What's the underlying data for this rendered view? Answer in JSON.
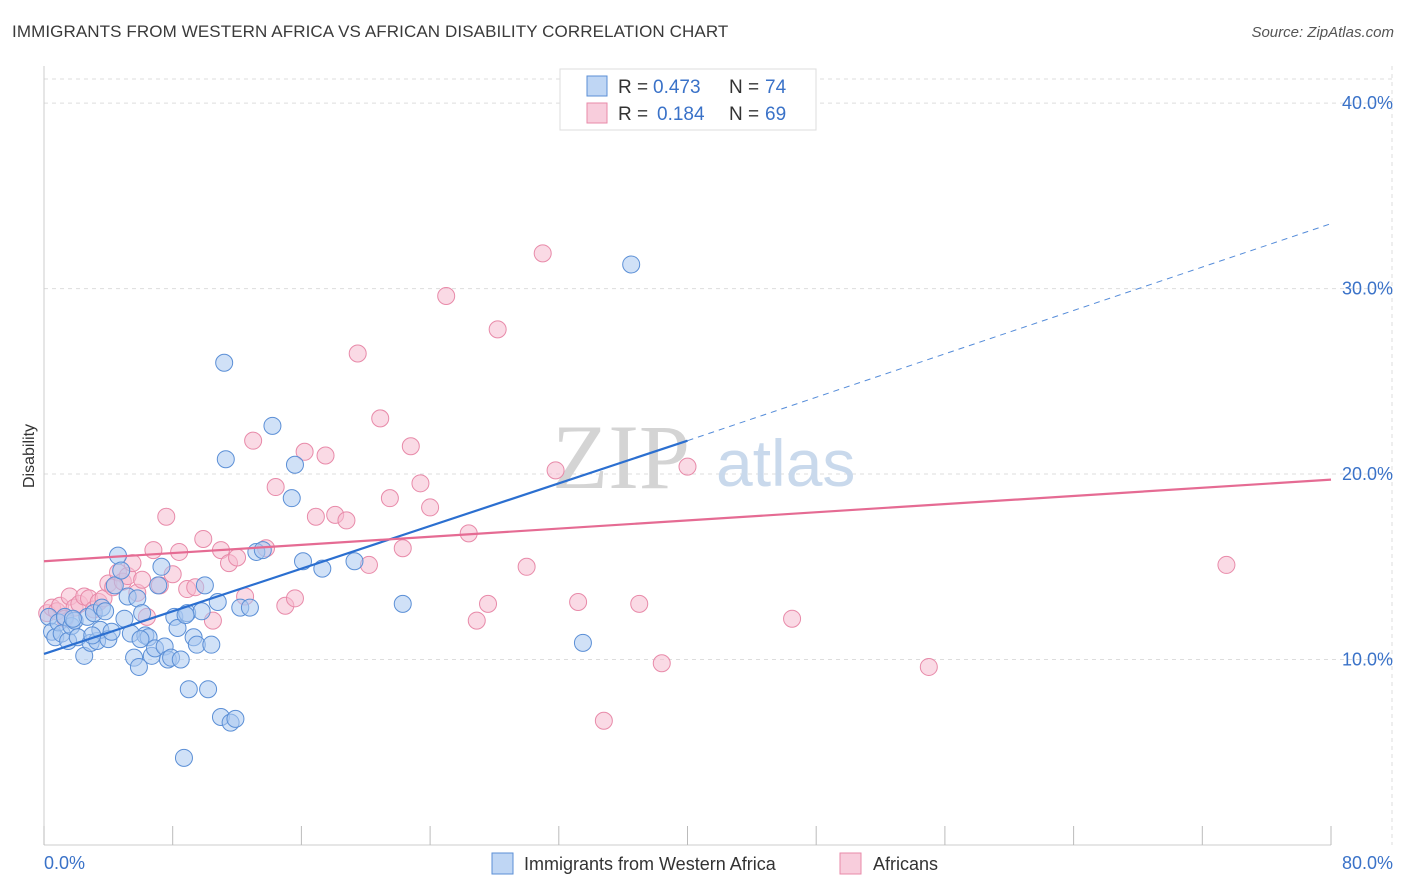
{
  "title": "IMMIGRANTS FROM WESTERN AFRICA VS AFRICAN DISABILITY CORRELATION CHART",
  "source": "Source: ZipAtlas.com",
  "watermark": {
    "zip": "ZIP",
    "atlas": "atlas"
  },
  "colors": {
    "blue_fill": "#aac8f0",
    "blue_stroke": "#5b8fd6",
    "blue_line": "#2b6fd0",
    "pink_fill": "#f6bcd0",
    "pink_stroke": "#e88aa9",
    "pink_line": "#e56b93",
    "grid": "#dddddd",
    "tick_text": "#3a72c8"
  },
  "legend_stats": [
    {
      "r_label": "R = ",
      "r_value": "0.473",
      "n_label": "N = ",
      "n_value": "74"
    },
    {
      "r_label": "R = ",
      "r_value": "0.184",
      "n_label": "N = ",
      "n_value": "69"
    }
  ],
  "chart_data": {
    "type": "scatter",
    "title": "IMMIGRANTS FROM WESTERN AFRICA VS AFRICAN DISABILITY CORRELATION CHART",
    "xlabel": "",
    "ylabel": "Disability",
    "xlim": [
      0,
      80
    ],
    "ylim": [
      0,
      42
    ],
    "x_tick_labels": [
      "0.0%",
      "80.0%"
    ],
    "y_ticks": [
      10,
      20,
      30,
      40
    ],
    "y_tick_labels": [
      "10.0%",
      "20.0%",
      "30.0%",
      "40.0%"
    ],
    "grid": true,
    "legend_position": "bottom",
    "series": [
      {
        "name": "Immigrants from Western Africa",
        "color": "#aac8f0",
        "trend": {
          "x0": 0,
          "y0": 10.3,
          "x1": 40,
          "y1": 21.8,
          "dashed_to_x": 80,
          "dashed_to_y": 33.5
        },
        "points": [
          [
            0.3,
            12.3
          ],
          [
            0.5,
            11.5
          ],
          [
            0.7,
            11.2
          ],
          [
            0.9,
            12.0
          ],
          [
            1.1,
            11.4
          ],
          [
            1.3,
            12.3
          ],
          [
            1.5,
            11.0
          ],
          [
            1.7,
            11.8
          ],
          [
            1.9,
            12.1
          ],
          [
            2.1,
            11.2
          ],
          [
            2.5,
            10.2
          ],
          [
            2.7,
            12.3
          ],
          [
            2.9,
            10.9
          ],
          [
            3.1,
            12.5
          ],
          [
            3.3,
            11.0
          ],
          [
            3.5,
            11.6
          ],
          [
            3.6,
            12.8
          ],
          [
            3.8,
            12.6
          ],
          [
            4.0,
            11.1
          ],
          [
            4.2,
            11.5
          ],
          [
            4.4,
            14.0
          ],
          [
            4.6,
            15.6
          ],
          [
            4.8,
            14.8
          ],
          [
            5.0,
            12.2
          ],
          [
            5.2,
            13.4
          ],
          [
            5.4,
            11.4
          ],
          [
            5.6,
            10.1
          ],
          [
            5.8,
            13.3
          ],
          [
            5.9,
            9.6
          ],
          [
            6.1,
            12.5
          ],
          [
            6.3,
            11.3
          ],
          [
            6.5,
            11.2
          ],
          [
            6.7,
            10.2
          ],
          [
            6.9,
            10.6
          ],
          [
            7.1,
            14.0
          ],
          [
            7.3,
            15.0
          ],
          [
            7.5,
            10.7
          ],
          [
            7.7,
            10.0
          ],
          [
            7.9,
            10.1
          ],
          [
            8.1,
            12.3
          ],
          [
            8.3,
            11.7
          ],
          [
            8.5,
            10.0
          ],
          [
            8.7,
            4.7
          ],
          [
            8.9,
            12.5
          ],
          [
            9.0,
            8.4
          ],
          [
            9.3,
            11.2
          ],
          [
            9.5,
            10.8
          ],
          [
            9.8,
            12.6
          ],
          [
            10.0,
            14.0
          ],
          [
            10.2,
            8.4
          ],
          [
            10.4,
            10.8
          ],
          [
            10.8,
            13.1
          ],
          [
            11.0,
            6.9
          ],
          [
            11.3,
            20.8
          ],
          [
            11.6,
            6.6
          ],
          [
            11.9,
            6.8
          ],
          [
            12.2,
            12.8
          ],
          [
            12.8,
            12.8
          ],
          [
            13.2,
            15.8
          ],
          [
            13.6,
            15.9
          ],
          [
            14.2,
            22.6
          ],
          [
            15.4,
            18.7
          ],
          [
            16.1,
            15.3
          ],
          [
            11.2,
            26.0
          ],
          [
            15.6,
            20.5
          ],
          [
            17.3,
            14.9
          ],
          [
            19.3,
            15.3
          ],
          [
            22.3,
            13.0
          ],
          [
            33.5,
            10.9
          ],
          [
            36.5,
            31.3
          ],
          [
            8.8,
            12.4
          ],
          [
            1.8,
            12.2
          ],
          [
            3.0,
            11.3
          ],
          [
            6.0,
            11.1
          ]
        ]
      },
      {
        "name": "Africans",
        "color": "#f6bcd0",
        "trend": {
          "x0": 0,
          "y0": 15.3,
          "x1": 80,
          "y1": 19.7
        },
        "points": [
          [
            0.2,
            12.5
          ],
          [
            0.5,
            12.8
          ],
          [
            0.8,
            12.6
          ],
          [
            1.0,
            12.9
          ],
          [
            1.3,
            12.2
          ],
          [
            1.6,
            13.4
          ],
          [
            1.9,
            12.8
          ],
          [
            2.2,
            13.0
          ],
          [
            2.5,
            13.4
          ],
          [
            2.8,
            13.3
          ],
          [
            3.1,
            12.7
          ],
          [
            3.4,
            13.1
          ],
          [
            3.7,
            13.3
          ],
          [
            4.0,
            14.1
          ],
          [
            4.3,
            13.9
          ],
          [
            4.6,
            14.7
          ],
          [
            4.9,
            14.2
          ],
          [
            5.2,
            14.5
          ],
          [
            5.5,
            15.2
          ],
          [
            5.8,
            13.6
          ],
          [
            6.1,
            14.3
          ],
          [
            6.4,
            12.3
          ],
          [
            6.8,
            15.9
          ],
          [
            7.2,
            14.0
          ],
          [
            7.6,
            17.7
          ],
          [
            8.0,
            14.6
          ],
          [
            8.4,
            15.8
          ],
          [
            8.9,
            13.8
          ],
          [
            9.4,
            13.9
          ],
          [
            9.9,
            16.5
          ],
          [
            10.5,
            12.1
          ],
          [
            11.0,
            15.9
          ],
          [
            11.5,
            15.2
          ],
          [
            12.0,
            15.5
          ],
          [
            12.5,
            13.4
          ],
          [
            13.0,
            21.8
          ],
          [
            13.8,
            16.0
          ],
          [
            14.4,
            19.3
          ],
          [
            15.0,
            12.9
          ],
          [
            15.6,
            13.3
          ],
          [
            16.2,
            21.2
          ],
          [
            16.9,
            17.7
          ],
          [
            17.5,
            21.0
          ],
          [
            18.1,
            17.8
          ],
          [
            18.8,
            17.5
          ],
          [
            19.5,
            26.5
          ],
          [
            20.2,
            15.1
          ],
          [
            20.9,
            23.0
          ],
          [
            21.5,
            18.7
          ],
          [
            22.3,
            16.0
          ],
          [
            22.8,
            21.5
          ],
          [
            23.4,
            19.5
          ],
          [
            24.0,
            18.2
          ],
          [
            25.0,
            29.6
          ],
          [
            26.4,
            16.8
          ],
          [
            26.9,
            12.1
          ],
          [
            27.6,
            13.0
          ],
          [
            28.2,
            27.8
          ],
          [
            30.0,
            15.0
          ],
          [
            31.0,
            31.9
          ],
          [
            31.8,
            20.2
          ],
          [
            33.2,
            13.1
          ],
          [
            34.8,
            6.7
          ],
          [
            37.0,
            13.0
          ],
          [
            38.4,
            9.8
          ],
          [
            40.0,
            20.4
          ],
          [
            46.5,
            12.2
          ],
          [
            55.0,
            9.6
          ],
          [
            73.5,
            15.1
          ]
        ]
      }
    ]
  }
}
